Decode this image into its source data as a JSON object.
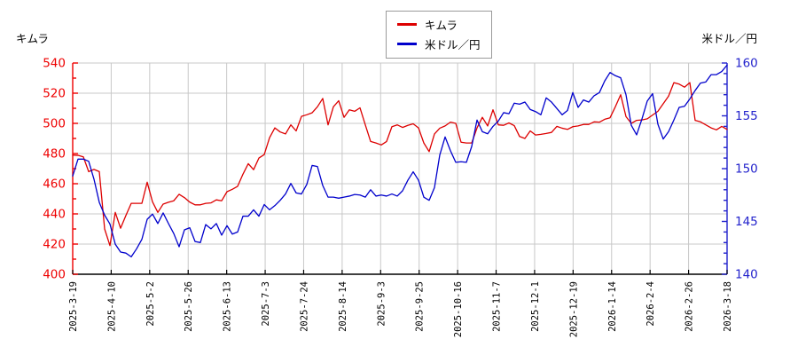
{
  "header": {
    "left_title": "キムラ",
    "right_title": "米ドル／円"
  },
  "legend": {
    "items": [
      {
        "label": "キムラ",
        "color": "#dd0000"
      },
      {
        "label": "米ドル／円",
        "color": "#0000cc"
      }
    ]
  },
  "chart_data": {
    "type": "line",
    "title": "",
    "grid": true,
    "legend_position": "top-center",
    "x_labels": [
      "2025-3-19",
      "2025-4-10",
      "2025-5-2",
      "2025-5-26",
      "2025-6-13",
      "2025-7-3",
      "2025-7-24",
      "2025-8-14",
      "2025-9-3",
      "2025-9-25",
      "2025-10-16",
      "2025-11-7",
      "2025-12-1",
      "2025-12-19",
      "2026-1-14",
      "2026-2-4",
      "2026-2-26",
      "2026-3-18"
    ],
    "left_axis": {
      "title": "キムラ",
      "min": 400,
      "max": 540,
      "major_step": 20,
      "minor_step": 10,
      "ticks": [
        400,
        420,
        440,
        460,
        480,
        500,
        520,
        540
      ],
      "color": "#ee0000"
    },
    "right_axis": {
      "title": "米ドル／円",
      "min": 140,
      "max": 160,
      "major_step": 5,
      "minor_step": 1,
      "ticks": [
        140,
        145,
        150,
        155,
        160
      ],
      "color": "#2222cc"
    },
    "grid_color": "#c8c8c8",
    "axis_color": "#000000",
    "series": [
      {
        "name": "キムラ",
        "axis": "left",
        "color": "#dd0000",
        "values": [
          479,
          478.8,
          477.8,
          468,
          469.5,
          468,
          430,
          419,
          441,
          430.5,
          439,
          447,
          447,
          447,
          461,
          448,
          441,
          446.5,
          447.7,
          448.7,
          453,
          450.8,
          447.8,
          446,
          446,
          447,
          447.3,
          449.3,
          448.7,
          454.7,
          456.3,
          458.3,
          466.3,
          473.3,
          469.3,
          477,
          479.3,
          490.5,
          497,
          494.3,
          493,
          499,
          495,
          504.6,
          505.7,
          507,
          511,
          516.5,
          499,
          511,
          515,
          504,
          509,
          508,
          510.3,
          499,
          488,
          487,
          485.7,
          488,
          497.8,
          499,
          497.3,
          498.7,
          499.7,
          497,
          487,
          481.3,
          493,
          496.8,
          498.3,
          500.8,
          500,
          487.5,
          487,
          487,
          497,
          504,
          498.3,
          509,
          499,
          498.7,
          500.3,
          498.5,
          491.3,
          490,
          495,
          492.3,
          492.7,
          493.3,
          494,
          498,
          496.8,
          496,
          497.8,
          498.3,
          499.3,
          499.3,
          501,
          500.8,
          502.7,
          503.7,
          511,
          519,
          504.5,
          500,
          502,
          502.3,
          503,
          505.5,
          508,
          513,
          518,
          527,
          526,
          524,
          527,
          502,
          501,
          499,
          497,
          495.7,
          498,
          496
        ]
      },
      {
        "name": "米ドル／円",
        "axis": "right",
        "color": "#0000cc",
        "values": [
          149.3,
          150.9,
          150.9,
          150.7,
          149.0,
          146.8,
          145.6,
          144.75,
          142.85,
          142.1,
          142.0,
          141.65,
          142.4,
          143.3,
          145.2,
          145.7,
          144.8,
          145.8,
          144.8,
          143.85,
          142.6,
          144.2,
          144.4,
          143.1,
          143.0,
          144.7,
          144.3,
          144.8,
          143.7,
          144.6,
          143.8,
          144.0,
          145.5,
          145.5,
          146.1,
          145.5,
          146.6,
          146.1,
          146.5,
          147.0,
          147.6,
          148.6,
          147.7,
          147.6,
          148.5,
          150.3,
          150.2,
          148.4,
          147.3,
          147.3,
          147.2,
          147.3,
          147.4,
          147.55,
          147.5,
          147.3,
          148.0,
          147.4,
          147.5,
          147.4,
          147.6,
          147.4,
          147.9,
          148.9,
          149.7,
          148.9,
          147.3,
          147.0,
          148.2,
          151.3,
          153.0,
          151.7,
          150.6,
          150.65,
          150.6,
          152.1,
          154.6,
          153.5,
          153.3,
          154.0,
          154.5,
          155.3,
          155.2,
          156.2,
          156.1,
          156.3,
          155.6,
          155.4,
          155.1,
          156.7,
          156.3,
          155.7,
          155.1,
          155.5,
          157.2,
          155.8,
          156.5,
          156.3,
          156.9,
          157.2,
          158.3,
          159.1,
          158.8,
          158.6,
          157.0,
          154.1,
          153.2,
          154.7,
          156.4,
          157.1,
          154.2,
          152.8,
          153.5,
          154.6,
          155.8,
          155.9,
          156.6,
          157.4,
          158.1,
          158.2,
          158.9,
          158.9,
          159.2,
          159.8
        ]
      }
    ]
  }
}
